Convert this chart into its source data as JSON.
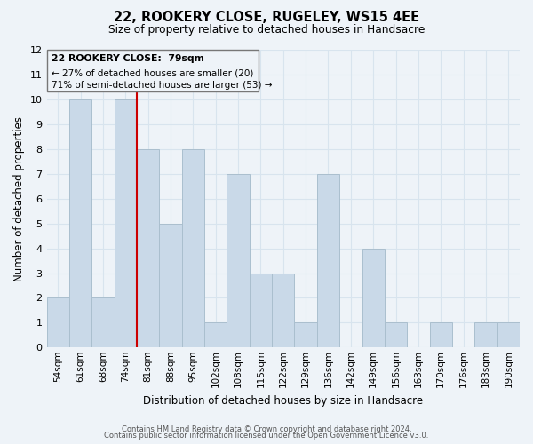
{
  "title": "22, ROOKERY CLOSE, RUGELEY, WS15 4EE",
  "subtitle": "Size of property relative to detached houses in Handsacre",
  "xlabel": "Distribution of detached houses by size in Handsacre",
  "ylabel": "Number of detached properties",
  "bin_labels": [
    "54sqm",
    "61sqm",
    "68sqm",
    "74sqm",
    "81sqm",
    "88sqm",
    "95sqm",
    "102sqm",
    "108sqm",
    "115sqm",
    "122sqm",
    "129sqm",
    "136sqm",
    "142sqm",
    "149sqm",
    "156sqm",
    "163sqm",
    "170sqm",
    "176sqm",
    "183sqm",
    "190sqm"
  ],
  "bar_heights": [
    2,
    10,
    2,
    10,
    8,
    5,
    8,
    1,
    7,
    3,
    3,
    1,
    7,
    0,
    4,
    1,
    0,
    1,
    0,
    1,
    1
  ],
  "bar_color": "#c9d9e8",
  "bar_edge_color": "#aabfce",
  "vline_x_index": 4,
  "vline_color": "#cc0000",
  "ylim": [
    0,
    12
  ],
  "yticks": [
    0,
    1,
    2,
    3,
    4,
    5,
    6,
    7,
    8,
    9,
    10,
    11,
    12
  ],
  "annotation_title": "22 ROOKERY CLOSE:  79sqm",
  "annotation_line1": "← 27% of detached houses are smaller (20)",
  "annotation_line2": "71% of semi-detached houses are larger (53) →",
  "footer_line1": "Contains HM Land Registry data © Crown copyright and database right 2024.",
  "footer_line2": "Contains public sector information licensed under the Open Government Licence v3.0.",
  "grid_color": "#d8e4ee",
  "background_color": "#eef3f8"
}
